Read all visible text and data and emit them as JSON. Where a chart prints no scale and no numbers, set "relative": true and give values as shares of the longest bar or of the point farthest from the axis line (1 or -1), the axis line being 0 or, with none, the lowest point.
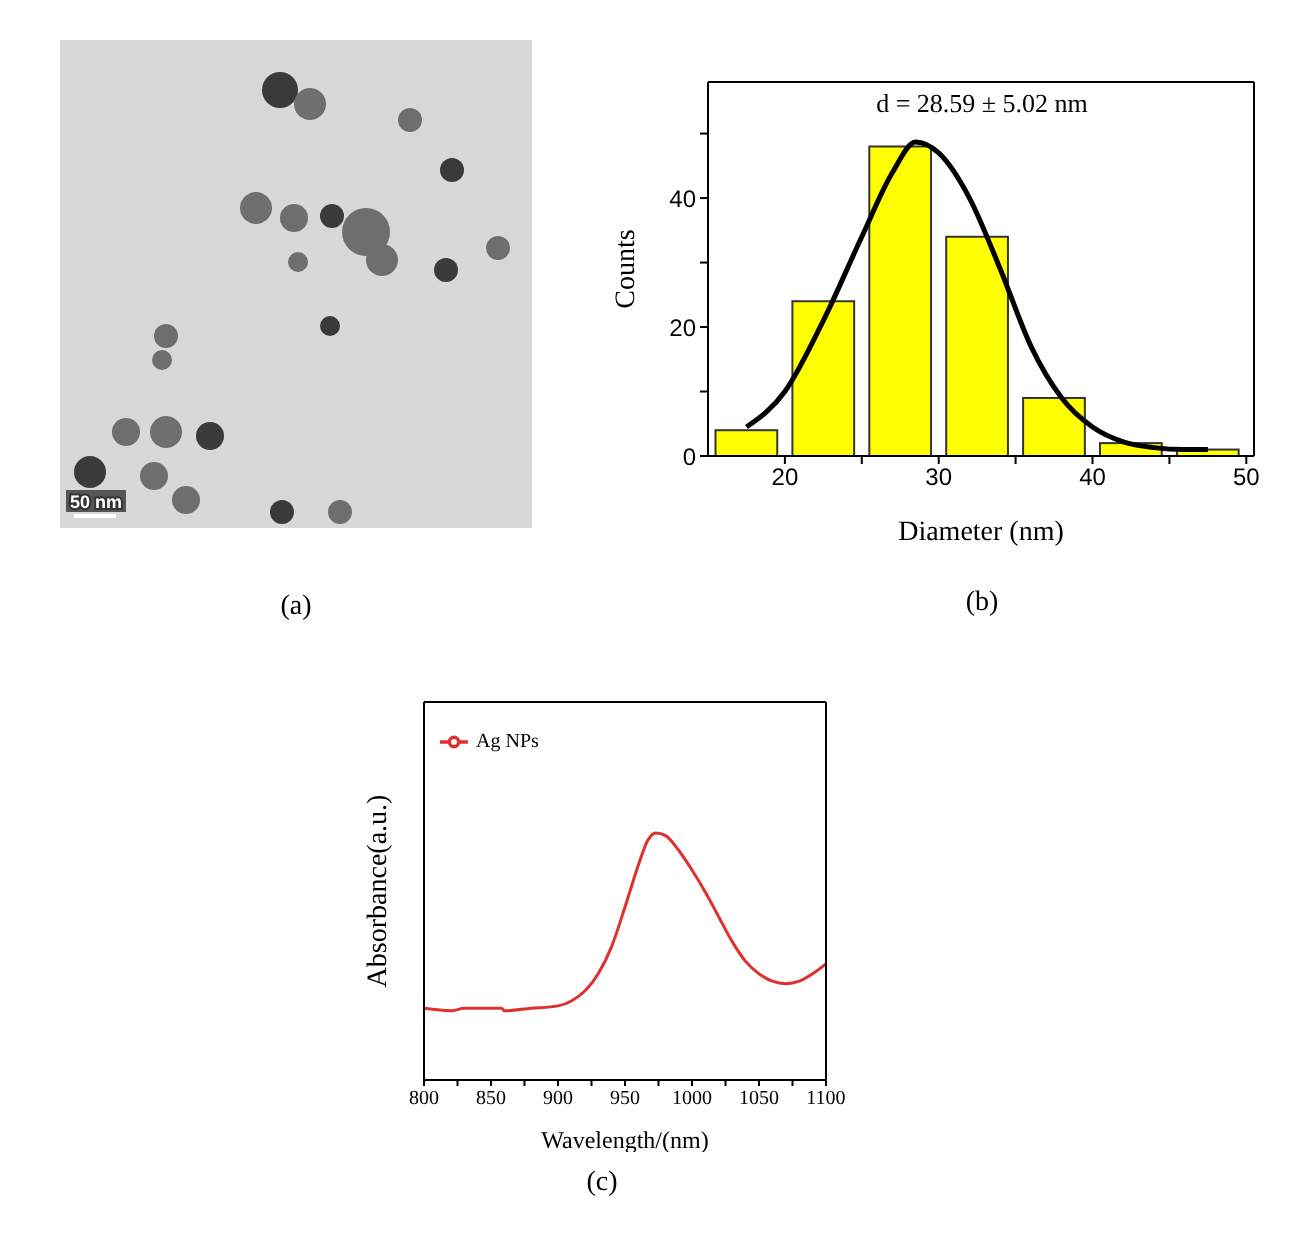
{
  "chart_data": [
    {
      "type": "other",
      "annotations": [
        "50 nm",
        "(a)"
      ]
    },
    {
      "type": "histogram",
      "xlabel": "Diameter (nm)",
      "ylabel": "Counts",
      "bins": [
        15,
        20,
        25,
        30,
        35,
        40,
        45,
        50
      ],
      "values": [
        4,
        24,
        48,
        34,
        9,
        2,
        1
      ],
      "color": "#ffff00",
      "series": [
        {
          "type": "line",
          "color": "#000000",
          "x": [
            17.5,
            20,
            22.5,
            25,
            27,
            28.5,
            30,
            32,
            34,
            36,
            38,
            40,
            42,
            44,
            46,
            47.5
          ],
          "values": [
            4.5,
            10,
            21,
            34,
            44,
            48.7,
            47,
            40,
            29,
            17,
            9,
            4.5,
            2.2,
            1.3,
            1,
            1
          ]
        }
      ],
      "xlim": [
        15,
        50.5
      ],
      "xticks": [
        20,
        {
          "value": 25,
          "label": null
        },
        30,
        {
          "value": 35,
          "label": null
        },
        40,
        {
          "value": 45,
          "label": null
        },
        50
      ],
      "ylim": [
        0,
        58
      ],
      "yticks": [
        0,
        {
          "value": 10,
          "label": null
        },
        20,
        {
          "value": 30,
          "label": null
        },
        40,
        {
          "value": 50,
          "label": null
        }
      ],
      "annotations": [
        "d = 28.59 ± 5.02 nm",
        "(b)"
      ],
      "grid": false,
      "legend": false
    },
    {
      "type": "line",
      "xlabel": "Wavelength/(nm)",
      "ylabel": "Absorbance(a.u.)",
      "relative": true,
      "x": [
        800,
        820,
        830,
        858,
        860,
        880,
        900,
        910,
        920,
        930,
        940,
        950,
        960,
        967,
        973,
        980,
        990,
        1000,
        1010,
        1020,
        1030,
        1040,
        1050,
        1060,
        1070,
        1080,
        1090,
        1100
      ],
      "series": [
        {
          "name": "Ag NPs",
          "color": "#e0302e",
          "values": [
            0.29,
            0.28,
            0.29,
            0.29,
            0.28,
            0.29,
            0.3,
            0.32,
            0.36,
            0.43,
            0.54,
            0.7,
            0.87,
            0.97,
            1,
            0.99,
            0.93,
            0.85,
            0.76,
            0.66,
            0.56,
            0.48,
            0.43,
            0.4,
            0.39,
            0.4,
            0.43,
            0.47
          ]
        }
      ],
      "xlim": [
        800,
        1100
      ],
      "xticks": [
        800,
        {
          "value": 825,
          "label": null
        },
        850,
        {
          "value": 875,
          "label": null
        },
        900,
        {
          "value": 925,
          "label": null
        },
        950,
        {
          "value": 975,
          "label": null
        },
        1000,
        {
          "value": 1025,
          "label": null
        },
        1050,
        {
          "value": 1075,
          "label": null
        },
        1100
      ],
      "annotations": [
        "(c)"
      ],
      "legend": "top left",
      "grid": false,
      "marker": "none",
      "line_style": "solid"
    }
  ]
}
